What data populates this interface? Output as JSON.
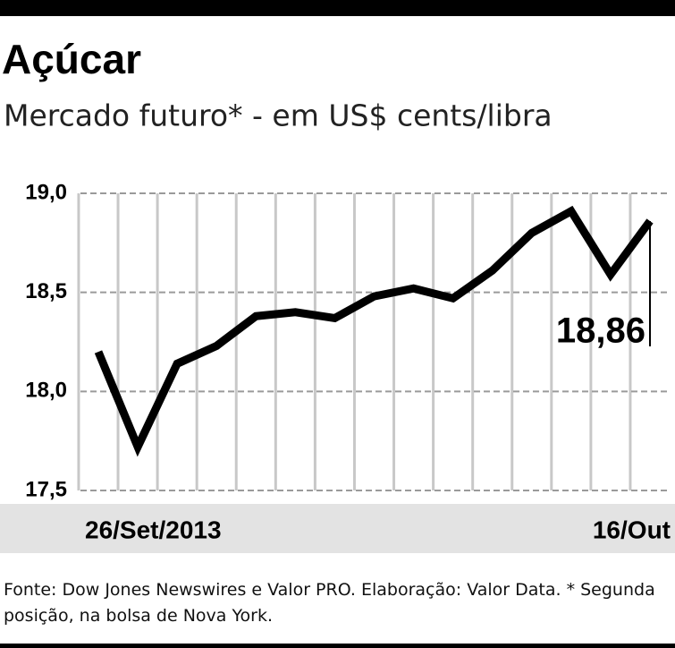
{
  "chart_data": {
    "type": "line",
    "title": "Açúcar",
    "subtitle": "Mercado futuro* - em US$ cents/libra",
    "categories": [
      "26/Set/2013",
      null,
      null,
      null,
      null,
      null,
      null,
      null,
      null,
      null,
      null,
      null,
      null,
      null,
      "16/Out"
    ],
    "values": [
      18.2,
      17.72,
      18.14,
      18.23,
      18.38,
      18.4,
      18.37,
      18.48,
      18.52,
      18.47,
      18.61,
      18.8,
      18.91,
      18.59,
      18.86
    ],
    "value_labels": [
      null,
      null,
      null,
      null,
      null,
      null,
      null,
      null,
      null,
      null,
      null,
      null,
      null,
      null,
      "18,86"
    ],
    "color": "#000000",
    "ylim": [
      17.5,
      19.0
    ],
    "yticks": [
      {
        "value": 17.5,
        "label": "17,5"
      },
      {
        "value": 18.0,
        "label": "18,0"
      },
      {
        "value": 18.5,
        "label": "18,5"
      },
      {
        "value": 19.0,
        "label": "19,0"
      }
    ],
    "grid": true,
    "source": "Fonte: Dow Jones Newswires e Valor PRO. Elaboração: Valor Data. * Segunda posição, na bolsa de Nova York."
  }
}
